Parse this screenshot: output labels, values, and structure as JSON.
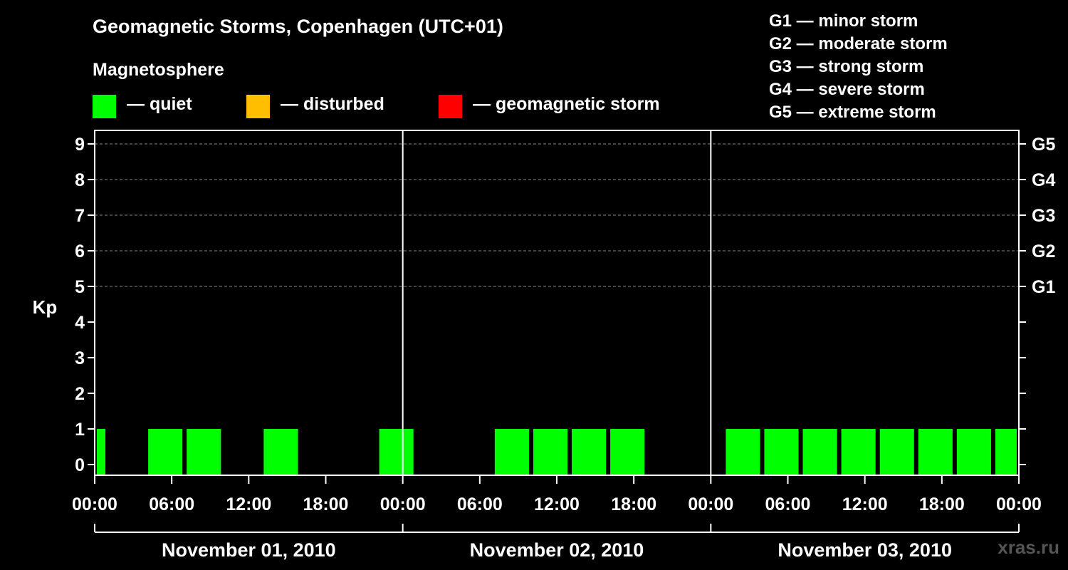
{
  "title": "Geomagnetic Storms, Copenhagen (UTC+01)",
  "subtitle": "Magnetosphere",
  "legend": [
    {
      "label": "— quiet",
      "color": "#00ff00"
    },
    {
      "label": "— disturbed",
      "color": "#ffbf00"
    },
    {
      "label": "— geomagnetic storm",
      "color": "#ff0000"
    }
  ],
  "storm_levels": [
    "G1 — minor storm",
    "G2 — moderate storm",
    "G3 — strong storm",
    "G4 — severe storm",
    "G5 — extreme storm"
  ],
  "watermark": "xras.ru",
  "chart_data": {
    "type": "bar",
    "ylabel": "Kp",
    "ylim": [
      0,
      9
    ],
    "yticks": [
      "0",
      "1",
      "2",
      "3",
      "4",
      "5",
      "6",
      "7",
      "8",
      "9"
    ],
    "right_ticks": [
      {
        "kp": 5,
        "label": "G1"
      },
      {
        "kp": 6,
        "label": "G2"
      },
      {
        "kp": 7,
        "label": "G3"
      },
      {
        "kp": 8,
        "label": "G4"
      },
      {
        "kp": 9,
        "label": "G5"
      }
    ],
    "xticks": [
      "00:00",
      "06:00",
      "12:00",
      "18:00",
      "00:00",
      "06:00",
      "12:00",
      "18:00",
      "00:00",
      "06:00",
      "12:00",
      "18:00",
      "00:00"
    ],
    "days": [
      "November 01, 2010",
      "November 02, 2010",
      "November 03, 2010"
    ],
    "x_range_hours": [
      0,
      72
    ],
    "bar_color": "#00ff00",
    "bars": [
      {
        "start_h": 0,
        "end_h": 1,
        "kp": 1
      },
      {
        "start_h": 4,
        "end_h": 7,
        "kp": 1
      },
      {
        "start_h": 7,
        "end_h": 10,
        "kp": 1
      },
      {
        "start_h": 13,
        "end_h": 16,
        "kp": 1
      },
      {
        "start_h": 22,
        "end_h": 25,
        "kp": 1
      },
      {
        "start_h": 31,
        "end_h": 34,
        "kp": 1
      },
      {
        "start_h": 34,
        "end_h": 37,
        "kp": 1
      },
      {
        "start_h": 37,
        "end_h": 40,
        "kp": 1
      },
      {
        "start_h": 40,
        "end_h": 43,
        "kp": 1
      },
      {
        "start_h": 49,
        "end_h": 52,
        "kp": 1
      },
      {
        "start_h": 52,
        "end_h": 55,
        "kp": 1
      },
      {
        "start_h": 55,
        "end_h": 58,
        "kp": 1
      },
      {
        "start_h": 58,
        "end_h": 61,
        "kp": 1
      },
      {
        "start_h": 61,
        "end_h": 64,
        "kp": 1
      },
      {
        "start_h": 64,
        "end_h": 67,
        "kp": 1
      },
      {
        "start_h": 67,
        "end_h": 70,
        "kp": 1
      },
      {
        "start_h": 70,
        "end_h": 72,
        "kp": 1
      }
    ]
  }
}
